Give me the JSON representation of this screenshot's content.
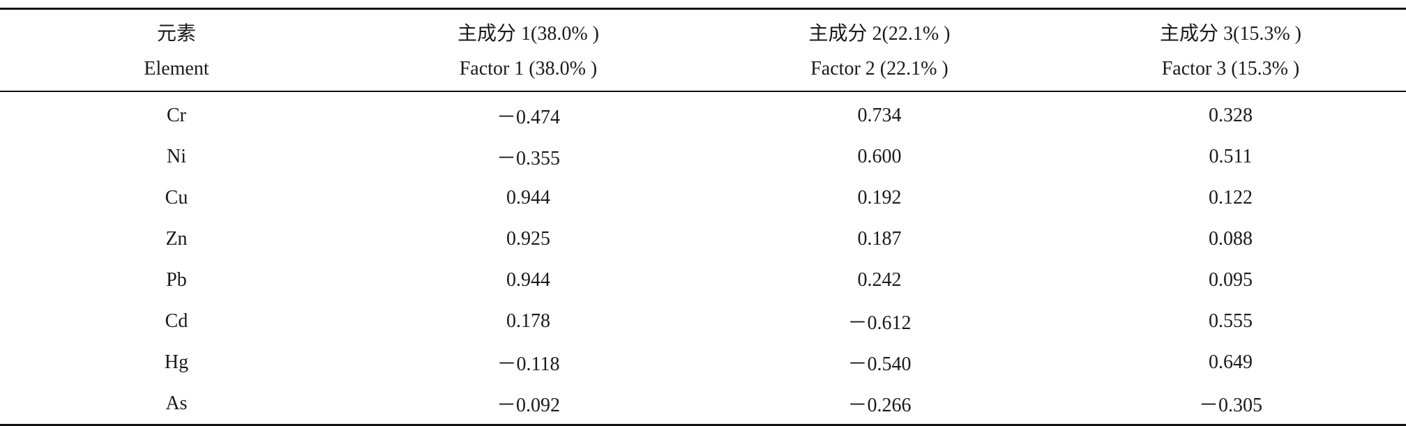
{
  "table": {
    "header_zh": [
      "元素",
      "主成分 1(38.0% )",
      "主成分 2(22.1% )",
      "主成分 3(15.3% )"
    ],
    "header_en": [
      "Element",
      "Factor 1 (38.0% )",
      "Factor 2 (22.1% )",
      "Factor 3 (15.3% )"
    ],
    "rows": [
      [
        "Cr",
        "－0.474",
        "0.734",
        "0.328"
      ],
      [
        "Ni",
        "－0.355",
        "0.600",
        "0.511"
      ],
      [
        "Cu",
        "0.944",
        "0.192",
        "0.122"
      ],
      [
        "Zn",
        "0.925",
        "0.187",
        "0.088"
      ],
      [
        "Pb",
        "0.944",
        "0.242",
        "0.095"
      ],
      [
        "Cd",
        "0.178",
        "－0.612",
        "0.555"
      ],
      [
        "Hg",
        "－0.118",
        "－0.540",
        "0.649"
      ],
      [
        "As",
        "－0.092",
        "－0.266",
        "－0.305"
      ]
    ]
  }
}
